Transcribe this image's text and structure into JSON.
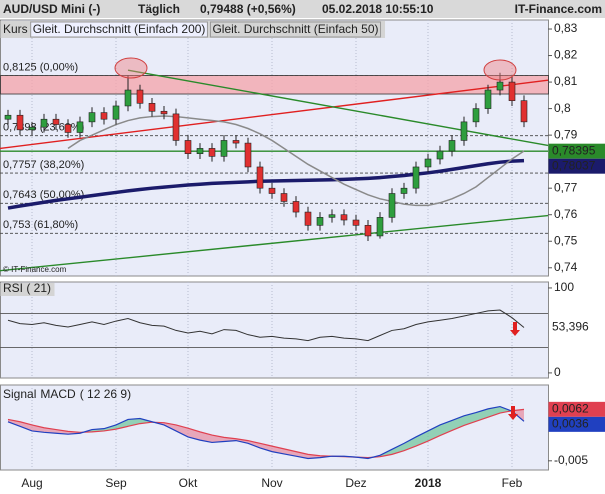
{
  "header": {
    "symbol": "AUD/USD Mini (-)",
    "period": "Täglich",
    "quote": "0,79488 (+0,56%)",
    "timestamp": "05.02.2018 10:55:10",
    "brand": "IT-Finance.com"
  },
  "chart_data": [
    {
      "type": "candlestick",
      "name": "Kurs",
      "watermark": "© IT-Finance.com",
      "background": "#e9ecf9",
      "up_color": "#2e9e3e",
      "down_color": "#e03030",
      "categories": [
        null,
        null,
        "Aug",
        null,
        null,
        null,
        null,
        null,
        null,
        "Sep",
        null,
        null,
        null,
        null,
        null,
        "Okt",
        null,
        null,
        null,
        null,
        null,
        null,
        "Nov",
        null,
        null,
        null,
        null,
        null,
        null,
        "Dez",
        null,
        null,
        null,
        null,
        null,
        "2018",
        null,
        null,
        null,
        null,
        null,
        null,
        "Feb",
        null
      ],
      "open": [
        0.796,
        0.7975,
        0.792,
        0.793,
        0.796,
        0.794,
        0.791,
        0.795,
        0.7985,
        0.796,
        0.801,
        0.807,
        0.802,
        0.799,
        0.798,
        0.788,
        0.783,
        0.785,
        0.782,
        0.788,
        0.787,
        0.778,
        0.77,
        0.768,
        0.765,
        0.761,
        0.756,
        0.759,
        0.76,
        0.758,
        0.756,
        0.752,
        0.759,
        0.768,
        0.77,
        0.778,
        0.781,
        0.784,
        0.788,
        0.795,
        0.8,
        0.807,
        0.81,
        0.803
      ],
      "high": [
        0.7995,
        0.7995,
        0.795,
        0.798,
        0.798,
        0.796,
        0.797,
        0.8005,
        0.8005,
        0.803,
        0.8125,
        0.809,
        0.804,
        0.801,
        0.8,
        0.79,
        0.787,
        0.787,
        0.79,
        0.79,
        0.789,
        0.78,
        0.772,
        0.77,
        0.767,
        0.763,
        0.761,
        0.762,
        0.762,
        0.76,
        0.758,
        0.761,
        0.77,
        0.772,
        0.78,
        0.783,
        0.786,
        0.79,
        0.797,
        0.802,
        0.809,
        0.8135,
        0.812,
        0.805
      ],
      "low": [
        0.794,
        0.79,
        0.79,
        0.791,
        0.792,
        0.789,
        0.789,
        0.793,
        0.794,
        0.794,
        0.799,
        0.8,
        0.797,
        0.796,
        0.786,
        0.781,
        0.781,
        0.78,
        0.78,
        0.785,
        0.776,
        0.768,
        0.766,
        0.763,
        0.759,
        0.754,
        0.754,
        0.757,
        0.756,
        0.754,
        0.7501,
        0.751,
        0.757,
        0.766,
        0.768,
        0.776,
        0.779,
        0.782,
        0.786,
        0.793,
        0.798,
        0.805,
        0.801,
        0.793
      ],
      "close": [
        0.7975,
        0.792,
        0.793,
        0.796,
        0.794,
        0.791,
        0.795,
        0.7985,
        0.796,
        0.801,
        0.807,
        0.802,
        0.799,
        0.798,
        0.788,
        0.783,
        0.785,
        0.782,
        0.788,
        0.787,
        0.778,
        0.77,
        0.768,
        0.765,
        0.761,
        0.756,
        0.759,
        0.76,
        0.758,
        0.756,
        0.752,
        0.759,
        0.768,
        0.77,
        0.778,
        0.781,
        0.784,
        0.788,
        0.795,
        0.8,
        0.807,
        0.81,
        0.803,
        0.795
      ],
      "series": [
        {
          "name": "Gleit. Durchschnitt (Einfach 200)",
          "color": "#1b1b6b",
          "width": 3.5,
          "values": [
            0.7625,
            0.7633,
            0.764,
            0.7647,
            0.7654,
            0.766,
            0.7666,
            0.7672,
            0.7678,
            0.7684,
            0.769,
            0.7695,
            0.77,
            0.7704,
            0.7708,
            0.7712,
            0.7715,
            0.7718,
            0.772,
            0.7722,
            0.7724,
            0.7726,
            0.7727,
            0.7728,
            0.7729,
            0.773,
            0.7731,
            0.7732,
            0.7733,
            0.7735,
            0.7737,
            0.774,
            0.7744,
            0.7748,
            0.7753,
            0.7758,
            0.7764,
            0.7771,
            0.7778,
            0.7785,
            0.7792,
            0.7798,
            0.7802,
            0.78037
          ]
        },
        {
          "name": "Gleit. Durchschnitt (Einfach 50)",
          "color": "#8a8a8a",
          "width": 1.5,
          "values": [
            null,
            null,
            null,
            null,
            null,
            0.785,
            0.788,
            0.79,
            0.792,
            0.794,
            0.7955,
            0.7965,
            0.797,
            0.7972,
            0.797,
            0.7965,
            0.796,
            0.7955,
            0.795,
            0.794,
            0.7925,
            0.7905,
            0.788,
            0.785,
            0.782,
            0.779,
            0.7765,
            0.774,
            0.7715,
            0.7695,
            0.7675,
            0.766,
            0.765,
            0.764,
            0.7635,
            0.7635,
            0.7645,
            0.766,
            0.768,
            0.7705,
            0.774,
            0.7775,
            0.781,
            0.784
          ]
        }
      ],
      "zone": {
        "from": 0.8055,
        "to": 0.8125,
        "color": "#f4a3a8"
      },
      "levels": [
        {
          "value": 0.8125,
          "label": "0,8125 (0,00%)"
        },
        {
          "value": 0.7898,
          "label": "0,7898 (23,60%)"
        },
        {
          "value": 0.7757,
          "label": "0,7757 (38,20%)"
        },
        {
          "value": 0.7643,
          "label": "0,7643 (50,00%)"
        },
        {
          "value": 0.753,
          "label": "0,753 (61,80%)"
        }
      ],
      "trend_lines": [
        {
          "color": "#e02020",
          "from": [
            -0.67,
            0.785
          ],
          "to": [
            45,
            0.8107
          ]
        },
        {
          "color": "#2a8a2a",
          "from": [
            10,
            0.8145
          ],
          "to": [
            45,
            0.7861
          ]
        },
        {
          "color": "#2a8a2a",
          "from": [
            -0.67,
            0.7389
          ],
          "to": [
            45,
            0.7597
          ]
        },
        {
          "color": "#2a8a2a",
          "from": [
            -0.67,
            0.78395
          ],
          "to": [
            45,
            0.78395
          ]
        }
      ],
      "right_labels": [
        {
          "value": 0.78395,
          "label": "0,78395",
          "color": "#2a8a2a"
        },
        {
          "value": 0.78037,
          "label": "0,78037",
          "color": "#1b1b6b"
        }
      ],
      "ylim": [
        0.7369,
        0.8334
      ],
      "yticks": [
        {
          "value": 0.74,
          "label": "0,74"
        },
        {
          "value": 0.75,
          "label": "0,75"
        },
        {
          "value": 0.76,
          "label": "0,76"
        },
        {
          "value": 0.77,
          "label": "0,77"
        },
        {
          "value": 0.79,
          "label": "0,79"
        },
        {
          "value": 0.8,
          "label": "0,8"
        },
        {
          "value": 0.81,
          "label": "0,81"
        },
        {
          "value": 0.82,
          "label": "0,82"
        },
        {
          "value": 0.83,
          "label": "0,83"
        }
      ]
    },
    {
      "type": "line",
      "title": "RSI ( 21)",
      "background": "#e9ecf9",
      "series": [
        {
          "name": "RSI",
          "color": "#333333",
          "width": 1,
          "values": [
            62,
            58,
            57,
            59,
            56,
            54,
            57,
            60,
            57,
            61,
            64,
            59,
            56,
            55,
            50,
            47,
            49,
            46,
            51,
            50,
            45,
            42,
            43,
            41,
            40,
            38,
            42,
            43,
            41,
            40,
            38,
            44,
            50,
            52,
            57,
            60,
            62,
            64,
            67,
            70,
            73,
            74,
            65,
            53.396
          ]
        }
      ],
      "hlines": [
        70,
        30
      ],
      "right_labels": [
        {
          "value": 53.396,
          "label": "53,396",
          "color": "#ffffff"
        }
      ],
      "ylim": [
        -6,
        107
      ],
      "yticks": [
        0,
        100
      ]
    },
    {
      "type": "line",
      "params": "( 12 26 9)",
      "background": "#e9ecf9",
      "fill": true,
      "series": [
        {
          "name": "Signal",
          "color": "#e04050",
          "width": 1.2,
          "values": [
            0.004,
            0.0035,
            0.0028,
            0.0022,
            0.0018,
            0.0014,
            0.0012,
            0.0013,
            0.0015,
            0.0019,
            0.0025,
            0.0031,
            0.0034,
            0.0033,
            0.0028,
            0.0021,
            0.0013,
            0.0006,
            0.0001,
            -0.0002,
            -0.0006,
            -0.0012,
            -0.0018,
            -0.0024,
            -0.003,
            -0.0036,
            -0.0039,
            -0.004,
            -0.0041,
            -0.0042,
            -0.0043,
            -0.0041,
            -0.0036,
            -0.0028,
            -0.0018,
            -0.0007,
            0.0005,
            0.0016,
            0.0027,
            0.0036,
            0.0045,
            0.0054,
            0.0059,
            0.0062
          ]
        },
        {
          "name": "MACD",
          "color": "#2040c0",
          "width": 1.2,
          "values": [
            0.0035,
            0.0025,
            0.0015,
            0.0012,
            0.001,
            0.0008,
            0.001,
            0.0018,
            0.002,
            0.0028,
            0.004,
            0.0042,
            0.0035,
            0.0028,
            0.0015,
            0.0002,
            -0.0005,
            -0.001,
            -0.0008,
            -0.0006,
            -0.0012,
            -0.0022,
            -0.003,
            -0.0035,
            -0.004,
            -0.0045,
            -0.0043,
            -0.004,
            -0.004,
            -0.0042,
            -0.0045,
            -0.0038,
            -0.0025,
            -0.0012,
            0.0002,
            0.0015,
            0.0028,
            0.0038,
            0.0048,
            0.0055,
            0.0063,
            0.0068,
            0.0058,
            0.0036
          ]
        }
      ],
      "right_labels": [
        {
          "value": 0.0062,
          "label": "0,0062",
          "color": "#e04050"
        },
        {
          "value": 0.0036,
          "label": "0,0036",
          "color": "#2040c0"
        }
      ],
      "ylim": [
        -0.007,
        0.0115
      ],
      "yticks": [
        {
          "value": -0.005,
          "label": "-0,005"
        }
      ]
    }
  ]
}
